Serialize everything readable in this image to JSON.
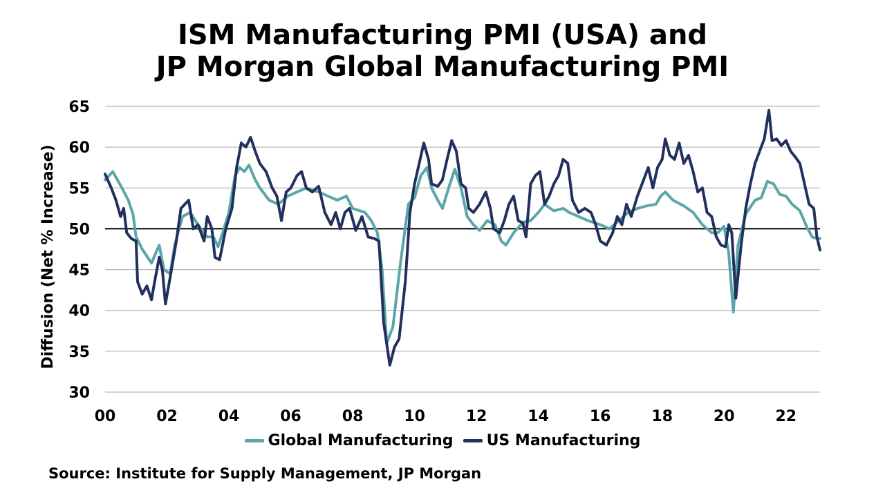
{
  "chart_data": {
    "type": "line",
    "title_lines": [
      "ISM Manufacturing PMI (USA) and",
      "JP Morgan Global Manufacturing PMI"
    ],
    "ylabel": "Diffusion (Net % Increase)",
    "xlabel": "",
    "ylim": [
      30,
      65
    ],
    "yticks": [
      30,
      35,
      40,
      45,
      50,
      55,
      60,
      65
    ],
    "xlim": [
      2000,
      2023.1
    ],
    "xticks": [
      {
        "value": 2000,
        "label": "00"
      },
      {
        "value": 2002,
        "label": "02"
      },
      {
        "value": 2004,
        "label": "04"
      },
      {
        "value": 2006,
        "label": "06"
      },
      {
        "value": 2008,
        "label": "08"
      },
      {
        "value": 2010,
        "label": "10"
      },
      {
        "value": 2012,
        "label": "12"
      },
      {
        "value": 2014,
        "label": "14"
      },
      {
        "value": 2016,
        "label": "16"
      },
      {
        "value": 2018,
        "label": "18"
      },
      {
        "value": 2020,
        "label": "20"
      },
      {
        "value": 2022,
        "label": "22"
      }
    ],
    "reference_line": 50,
    "grid": "horizontal",
    "legend_position": "bottom",
    "series": [
      {
        "name": "Global Manufacturing",
        "color": "#5aa6a8",
        "points": [
          [
            2000.0,
            56.0
          ],
          [
            2000.25,
            57.0
          ],
          [
            2000.5,
            55.3
          ],
          [
            2000.75,
            53.5
          ],
          [
            2000.9,
            51.8
          ],
          [
            2001.0,
            49.0
          ],
          [
            2001.2,
            47.5
          ],
          [
            2001.5,
            45.8
          ],
          [
            2001.75,
            48.0
          ],
          [
            2001.9,
            45.0
          ],
          [
            2002.1,
            44.5
          ],
          [
            2002.25,
            48.0
          ],
          [
            2002.5,
            51.5
          ],
          [
            2002.75,
            52.0
          ],
          [
            2003.0,
            50.5
          ],
          [
            2003.3,
            49.0
          ],
          [
            2003.5,
            49.0
          ],
          [
            2003.65,
            47.8
          ],
          [
            2003.8,
            49.5
          ],
          [
            2004.0,
            52.0
          ],
          [
            2004.2,
            56.5
          ],
          [
            2004.35,
            57.5
          ],
          [
            2004.5,
            57.0
          ],
          [
            2004.65,
            57.8
          ],
          [
            2004.85,
            56.0
          ],
          [
            2005.0,
            55.0
          ],
          [
            2005.3,
            53.5
          ],
          [
            2005.6,
            53.0
          ],
          [
            2005.9,
            54.0
          ],
          [
            2006.2,
            54.5
          ],
          [
            2006.5,
            55.0
          ],
          [
            2006.9,
            54.5
          ],
          [
            2007.2,
            54.0
          ],
          [
            2007.5,
            53.5
          ],
          [
            2007.8,
            54.0
          ],
          [
            2008.0,
            52.5
          ],
          [
            2008.4,
            52.0
          ],
          [
            2008.6,
            51.0
          ],
          [
            2008.8,
            49.5
          ],
          [
            2008.95,
            45.0
          ],
          [
            2009.1,
            36.0
          ],
          [
            2009.3,
            38.0
          ],
          [
            2009.55,
            46.0
          ],
          [
            2009.8,
            53.0
          ],
          [
            2010.0,
            53.8
          ],
          [
            2010.2,
            56.5
          ],
          [
            2010.4,
            57.5
          ],
          [
            2010.55,
            55.0
          ],
          [
            2010.75,
            53.5
          ],
          [
            2010.9,
            52.5
          ],
          [
            2011.1,
            55.0
          ],
          [
            2011.3,
            57.3
          ],
          [
            2011.5,
            55.0
          ],
          [
            2011.7,
            51.5
          ],
          [
            2011.9,
            50.5
          ],
          [
            2012.1,
            49.8
          ],
          [
            2012.35,
            51.0
          ],
          [
            2012.6,
            50.5
          ],
          [
            2012.8,
            48.5
          ],
          [
            2012.95,
            48.0
          ],
          [
            2013.2,
            49.5
          ],
          [
            2013.5,
            50.8
          ],
          [
            2013.75,
            51.0
          ],
          [
            2014.0,
            52.0
          ],
          [
            2014.2,
            53.0
          ],
          [
            2014.5,
            52.2
          ],
          [
            2014.8,
            52.5
          ],
          [
            2015.0,
            52.0
          ],
          [
            2015.3,
            51.5
          ],
          [
            2015.6,
            51.0
          ],
          [
            2016.0,
            50.5
          ],
          [
            2016.3,
            50.0
          ],
          [
            2016.6,
            51.0
          ],
          [
            2016.9,
            52.0
          ],
          [
            2017.2,
            52.5
          ],
          [
            2017.5,
            52.8
          ],
          [
            2017.8,
            53.0
          ],
          [
            2017.95,
            54.0
          ],
          [
            2018.1,
            54.5
          ],
          [
            2018.35,
            53.5
          ],
          [
            2018.7,
            52.8
          ],
          [
            2019.0,
            52.0
          ],
          [
            2019.3,
            50.5
          ],
          [
            2019.6,
            49.5
          ],
          [
            2019.8,
            49.5
          ],
          [
            2020.0,
            50.3
          ],
          [
            2020.15,
            47.0
          ],
          [
            2020.3,
            39.8
          ],
          [
            2020.45,
            48.0
          ],
          [
            2020.7,
            51.8
          ],
          [
            2021.0,
            53.5
          ],
          [
            2021.2,
            53.8
          ],
          [
            2021.4,
            55.8
          ],
          [
            2021.6,
            55.5
          ],
          [
            2021.8,
            54.2
          ],
          [
            2022.0,
            54.0
          ],
          [
            2022.2,
            53.0
          ],
          [
            2022.45,
            52.2
          ],
          [
            2022.7,
            50.0
          ],
          [
            2022.85,
            49.0
          ],
          [
            2023.0,
            48.8
          ],
          [
            2023.1,
            48.8
          ]
        ]
      },
      {
        "name": "US Manufacturing",
        "color": "#22305e",
        "points": [
          [
            2000.0,
            56.7
          ],
          [
            2000.2,
            55.0
          ],
          [
            2000.35,
            53.5
          ],
          [
            2000.5,
            51.5
          ],
          [
            2000.6,
            52.5
          ],
          [
            2000.7,
            49.5
          ],
          [
            2000.85,
            48.8
          ],
          [
            2001.0,
            48.5
          ],
          [
            2001.05,
            43.5
          ],
          [
            2001.2,
            42.0
          ],
          [
            2001.35,
            43.0
          ],
          [
            2001.5,
            41.3
          ],
          [
            2001.6,
            43.5
          ],
          [
            2001.75,
            46.5
          ],
          [
            2001.85,
            45.0
          ],
          [
            2001.95,
            40.8
          ],
          [
            2002.1,
            44.0
          ],
          [
            2002.3,
            48.5
          ],
          [
            2002.45,
            52.5
          ],
          [
            2002.7,
            53.5
          ],
          [
            2002.85,
            50.0
          ],
          [
            2003.0,
            50.5
          ],
          [
            2003.2,
            48.5
          ],
          [
            2003.3,
            51.5
          ],
          [
            2003.45,
            50.0
          ],
          [
            2003.55,
            46.5
          ],
          [
            2003.7,
            46.2
          ],
          [
            2003.9,
            50.0
          ],
          [
            2004.1,
            52.5
          ],
          [
            2004.25,
            57.5
          ],
          [
            2004.4,
            60.5
          ],
          [
            2004.55,
            60.0
          ],
          [
            2004.7,
            61.2
          ],
          [
            2004.85,
            59.5
          ],
          [
            2005.0,
            58.0
          ],
          [
            2005.2,
            57.0
          ],
          [
            2005.4,
            55.0
          ],
          [
            2005.55,
            54.0
          ],
          [
            2005.7,
            51.0
          ],
          [
            2005.85,
            54.5
          ],
          [
            2006.0,
            55.0
          ],
          [
            2006.2,
            56.5
          ],
          [
            2006.35,
            57.0
          ],
          [
            2006.5,
            55.0
          ],
          [
            2006.7,
            54.5
          ],
          [
            2006.9,
            55.2
          ],
          [
            2007.1,
            52.0
          ],
          [
            2007.3,
            50.5
          ],
          [
            2007.45,
            52.0
          ],
          [
            2007.6,
            50.0
          ],
          [
            2007.75,
            52.0
          ],
          [
            2007.9,
            52.5
          ],
          [
            2008.1,
            49.8
          ],
          [
            2008.3,
            51.5
          ],
          [
            2008.5,
            49.0
          ],
          [
            2008.7,
            48.8
          ],
          [
            2008.85,
            48.5
          ],
          [
            2009.0,
            38.5
          ],
          [
            2009.2,
            33.3
          ],
          [
            2009.35,
            35.5
          ],
          [
            2009.5,
            36.5
          ],
          [
            2009.7,
            43.5
          ],
          [
            2009.85,
            52.0
          ],
          [
            2010.0,
            55.5
          ],
          [
            2010.15,
            58.0
          ],
          [
            2010.3,
            60.5
          ],
          [
            2010.45,
            58.5
          ],
          [
            2010.55,
            55.5
          ],
          [
            2010.75,
            55.2
          ],
          [
            2010.9,
            56.0
          ],
          [
            2011.05,
            58.5
          ],
          [
            2011.2,
            60.8
          ],
          [
            2011.35,
            59.5
          ],
          [
            2011.5,
            55.5
          ],
          [
            2011.65,
            55.0
          ],
          [
            2011.75,
            52.5
          ],
          [
            2011.9,
            52.0
          ],
          [
            2012.1,
            53.0
          ],
          [
            2012.3,
            54.5
          ],
          [
            2012.45,
            52.5
          ],
          [
            2012.55,
            50.0
          ],
          [
            2012.75,
            49.5
          ],
          [
            2012.9,
            51.0
          ],
          [
            2013.05,
            53.0
          ],
          [
            2013.2,
            54.0
          ],
          [
            2013.35,
            51.0
          ],
          [
            2013.5,
            50.7
          ],
          [
            2013.6,
            49.0
          ],
          [
            2013.75,
            55.5
          ],
          [
            2013.9,
            56.5
          ],
          [
            2014.05,
            57.0
          ],
          [
            2014.2,
            53.0
          ],
          [
            2014.35,
            54.0
          ],
          [
            2014.5,
            55.5
          ],
          [
            2014.65,
            56.5
          ],
          [
            2014.8,
            58.5
          ],
          [
            2014.95,
            58.0
          ],
          [
            2015.1,
            53.5
          ],
          [
            2015.3,
            52.0
          ],
          [
            2015.5,
            52.5
          ],
          [
            2015.7,
            52.0
          ],
          [
            2015.85,
            50.5
          ],
          [
            2016.0,
            48.5
          ],
          [
            2016.2,
            48.0
          ],
          [
            2016.4,
            49.5
          ],
          [
            2016.55,
            51.5
          ],
          [
            2016.7,
            50.5
          ],
          [
            2016.85,
            53.0
          ],
          [
            2017.0,
            51.5
          ],
          [
            2017.2,
            54.0
          ],
          [
            2017.4,
            56.0
          ],
          [
            2017.55,
            57.5
          ],
          [
            2017.7,
            55.0
          ],
          [
            2017.85,
            57.5
          ],
          [
            2018.0,
            58.5
          ],
          [
            2018.1,
            61.0
          ],
          [
            2018.25,
            59.0
          ],
          [
            2018.4,
            58.5
          ],
          [
            2018.55,
            60.5
          ],
          [
            2018.7,
            58.0
          ],
          [
            2018.85,
            59.0
          ],
          [
            2019.0,
            57.0
          ],
          [
            2019.15,
            54.5
          ],
          [
            2019.3,
            55.0
          ],
          [
            2019.45,
            52.0
          ],
          [
            2019.6,
            51.5
          ],
          [
            2019.75,
            49.0
          ],
          [
            2019.9,
            48.0
          ],
          [
            2020.05,
            47.8
          ],
          [
            2020.15,
            50.5
          ],
          [
            2020.25,
            49.5
          ],
          [
            2020.38,
            41.5
          ],
          [
            2020.55,
            48.0
          ],
          [
            2020.7,
            52.5
          ],
          [
            2020.85,
            55.5
          ],
          [
            2021.0,
            58.0
          ],
          [
            2021.15,
            59.5
          ],
          [
            2021.3,
            61.0
          ],
          [
            2021.45,
            64.5
          ],
          [
            2021.55,
            60.8
          ],
          [
            2021.7,
            61.0
          ],
          [
            2021.85,
            60.2
          ],
          [
            2022.0,
            60.8
          ],
          [
            2022.15,
            59.5
          ],
          [
            2022.3,
            58.8
          ],
          [
            2022.45,
            58.0
          ],
          [
            2022.6,
            55.5
          ],
          [
            2022.75,
            53.0
          ],
          [
            2022.9,
            52.5
          ],
          [
            2023.0,
            49.0
          ],
          [
            2023.1,
            47.4
          ]
        ]
      }
    ]
  },
  "source_text": "Source: Institute for Supply Management, JP Morgan"
}
